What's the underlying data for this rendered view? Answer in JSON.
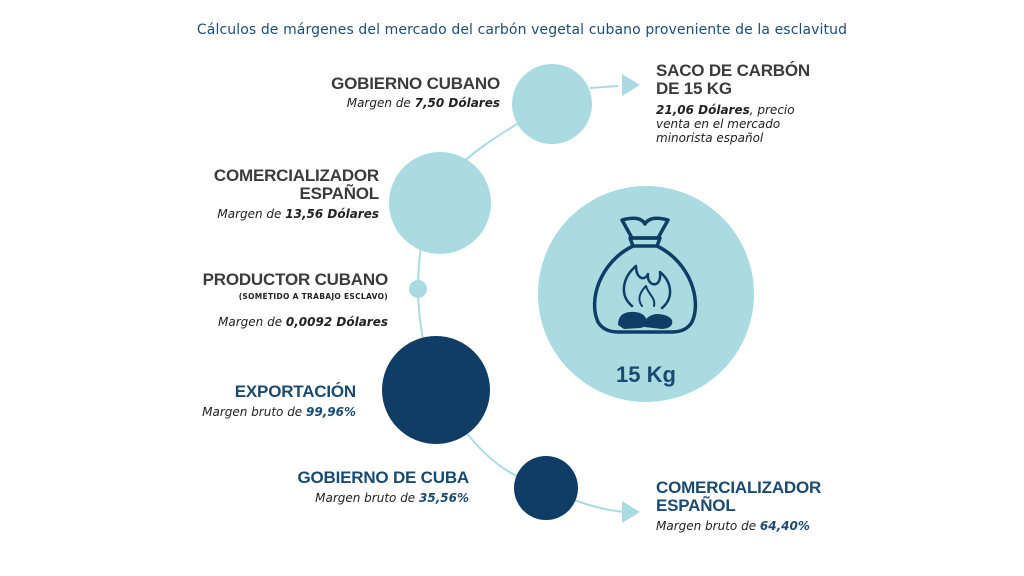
{
  "title": "Cálculos de márgenes del mercado del carbón vegetal cubano proveniente de la esclavitud",
  "colors": {
    "light": "#a9dbe0",
    "dark": "#0f3d66",
    "heading_dark": "#3b3b3b",
    "heading_blue": "#1a4a70"
  },
  "nodes": {
    "gobierno_cubano": {
      "title": "GOBIERNO CUBANO",
      "margin_prefix": "Margen de ",
      "margin_value": "7,50 Dólares"
    },
    "comercializador_espanol_top": {
      "title_line1": "COMERCIALIZADOR",
      "title_line2": "ESPAÑOL",
      "margin_prefix": "Margen de ",
      "margin_value": "13,56 Dólares"
    },
    "productor_cubano": {
      "title": "PRODUCTOR CUBANO",
      "subtitle": "(SOMETIDO A TRABAJO ESCLAVO)",
      "margin_prefix": "Margen de ",
      "margin_value": "0,0092 Dólares"
    },
    "exportacion": {
      "title": "EXPORTACIÓN",
      "margin_prefix": "Margen bruto de ",
      "margin_value": "99,96%"
    },
    "gobierno_de_cuba": {
      "title": "GOBIERNO DE CUBA",
      "margin_prefix": "Margen bruto de ",
      "margin_value": "35,56%"
    },
    "comercializador_espanol_bottom": {
      "title_line1": "COMERCIALIZADOR",
      "title_line2": "ESPAÑOL",
      "margin_prefix": "Margen bruto de ",
      "margin_value": "64,40%"
    }
  },
  "saco": {
    "title_line1": "SACO DE CARBÓN",
    "title_line2": "DE 15 KG",
    "price_value": "21,06 Dólares",
    "price_rest_line1": ", precio",
    "price_line2": "venta en el mercado",
    "price_line3": "minorista español"
  },
  "bag_label": "15 Kg",
  "icons": {
    "bag": "charcoal-bag-icon"
  }
}
